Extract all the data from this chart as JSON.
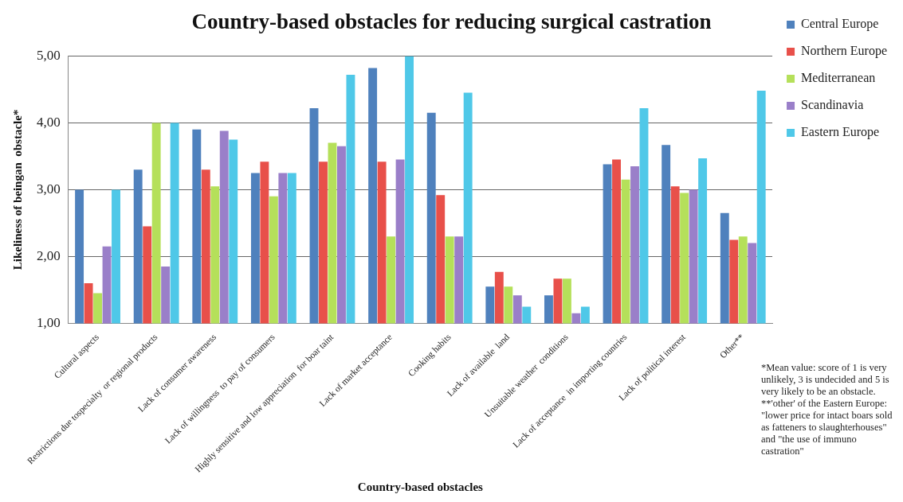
{
  "chart_data": {
    "type": "bar",
    "title": "Country-based obstacles for reducing surgical castration",
    "xlabel": "Country-based obstacles",
    "ylabel": "Likeliness of beingan  obstacle*",
    "categories": [
      "Cultural aspects",
      "Restrictions due tospecialty  or regional products",
      "Lack of consumer awareness",
      "Lack of willingness  to pay of consumers",
      "Highly sensitive and low appreciation  for boar taint",
      "Lack of market acceptance",
      "Cooking habits",
      "Lack of available  land",
      "Unsuitable weather  conditions",
      "Lack of acceptance  in importing countries",
      "Lack of political interest",
      "Other**"
    ],
    "series": [
      {
        "name": "Central Europe",
        "color": "#4f81bd",
        "values": [
          3.0,
          3.3,
          3.9,
          3.25,
          4.22,
          4.82,
          4.15,
          1.55,
          1.42,
          3.38,
          3.67,
          2.65
        ]
      },
      {
        "name": "Northern Europe",
        "color": "#e8504a",
        "values": [
          1.6,
          2.45,
          3.3,
          3.42,
          3.42,
          3.42,
          2.92,
          1.77,
          1.67,
          3.45,
          3.05,
          2.25
        ]
      },
      {
        "name": "Mediterranean",
        "color": "#b5e05a",
        "values": [
          1.45,
          4.0,
          3.05,
          2.9,
          3.7,
          2.3,
          2.3,
          1.55,
          1.67,
          3.15,
          2.95,
          2.3
        ]
      },
      {
        "name": "Scandinavia",
        "color": "#9a7fc9",
        "values": [
          2.15,
          1.85,
          3.88,
          3.25,
          3.65,
          3.45,
          2.3,
          1.42,
          1.15,
          3.35,
          3.0,
          2.2
        ]
      },
      {
        "name": "Eastern Europe",
        "color": "#4fc8e8",
        "values": [
          3.0,
          4.0,
          3.75,
          3.25,
          4.72,
          5.0,
          4.45,
          1.25,
          1.25,
          4.22,
          3.47,
          4.48
        ]
      }
    ],
    "ylim": [
      1,
      5
    ],
    "yticks": [
      {
        "value": 1,
        "label": "1,00"
      },
      {
        "value": 2,
        "label": "2,00"
      },
      {
        "value": 3,
        "label": "3,00"
      },
      {
        "value": 4,
        "label": "4,00"
      },
      {
        "value": 5,
        "label": "5,00"
      }
    ],
    "grid": "y",
    "legend": "right",
    "annotations": [
      "*Mean value:  score of 1 is very unlikely, 3 is undecided and 5 is very likely to be an obstacle. **'other'  of the Eastern  Europe: \"lower  price for intact boars sold as fatteners to slaughterhouses\" and \"the use of immuno castration\""
    ]
  }
}
